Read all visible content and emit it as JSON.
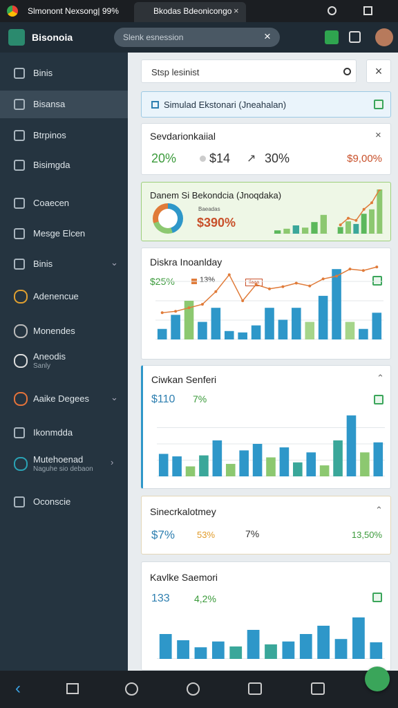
{
  "tabs": [
    "Slmonont Nexsong| 99%",
    "Bkodas Bdeonicongo"
  ],
  "app": {
    "name": "Bisonoia",
    "search": "Slenk esnession"
  },
  "sidebar": [
    {
      "label": "Binis"
    },
    {
      "label": "Bisansa"
    },
    {
      "label": "Btrpinos"
    },
    {
      "label": "Bisimgda"
    },
    {
      "label": "Coaecen"
    },
    {
      "label": "Mesge Elcen"
    },
    {
      "label": "Binis"
    },
    {
      "label": "Adenencue"
    },
    {
      "label": "Monendes"
    },
    {
      "label": "Aneodis",
      "sub": "Sanly"
    },
    {
      "label": "Aaike Degees"
    },
    {
      "label": "Ikonmdda"
    },
    {
      "label": "Mutehoenad",
      "sub": "Naguhe sio debaon"
    },
    {
      "label": "Oconscie"
    }
  ],
  "main": {
    "search": "Stsp lesinist",
    "banner": "Simulad Ekstonari (Jneahalan)",
    "cards": [
      {
        "title": "Sevdarionkaiial",
        "stats": [
          "20%",
          "$14",
          "30%",
          "$9,00%"
        ]
      },
      {
        "title": "Danem Si Bekondcia (Jnoqdaka)",
        "label": "Baeadas",
        "value": "$390%",
        "charts": [
          {
            "type": "bar",
            "values": [
              12,
              18,
              30,
              22,
              42,
              68
            ],
            "colors": [
              "#5cb85c",
              "#8cc870",
              "#3aa79a",
              "#8cc870",
              "#5cb85c",
              "#8cc870"
            ],
            "ylim": [
              0,
              100
            ]
          },
          {
            "type": "bar",
            "values": [
              15,
              28,
              22,
              45,
              55,
              100
            ],
            "colors": [
              "#5cb85c",
              "#8cc870",
              "#3aa79a",
              "#5cb85c",
              "#8cc870",
              "#8cc870"
            ],
            "ylim": [
              0,
              100
            ],
            "line": [
              20,
              35,
              30,
              55,
              70,
              100
            ],
            "line_color": "#e07b39"
          }
        ]
      },
      {
        "title": "Diskra Inoanlday",
        "stats": [
          "$25%",
          "13%"
        ],
        "tag": "Ilaaa",
        "chart": {
          "type": "bar",
          "values": [
            15,
            35,
            55,
            25,
            45,
            12,
            10,
            20,
            45,
            28,
            45,
            25,
            62,
            100,
            25,
            15,
            38
          ],
          "colors": [
            "#2e97c9",
            "#2e97c9",
            "#8cc870",
            "#2e97c9",
            "#2e97c9",
            "#2e97c9",
            "#2e97c9",
            "#2e97c9",
            "#2e97c9",
            "#2e97c9",
            "#2e97c9",
            "#a5d58a",
            "#2e97c9",
            "#2e97c9",
            "#a5d58a",
            "#2e97c9",
            "#2e97c9"
          ],
          "ylim": [
            0,
            110
          ],
          "line": [
            38,
            40,
            45,
            50,
            68,
            92,
            55,
            78,
            72,
            75,
            80,
            76,
            86,
            90,
            100,
            98,
            103
          ],
          "line_color": "#e07b39"
        }
      },
      {
        "title": "Ciwkan Senferi",
        "stats": [
          "$110",
          "7%"
        ],
        "chart": {
          "type": "bar",
          "values": [
            45,
            40,
            20,
            42,
            72,
            25,
            52,
            65,
            38,
            58,
            28,
            48,
            22,
            72,
            122,
            48,
            68
          ],
          "colors": [
            "#2e97c9",
            "#2e97c9",
            "#8cc870",
            "#3aa79a",
            "#2e97c9",
            "#8cc870",
            "#2e97c9",
            "#2e97c9",
            "#8cc870",
            "#2e97c9",
            "#3aa79a",
            "#2e97c9",
            "#8cc870",
            "#3aa79a",
            "#2e97c9",
            "#8cc870",
            "#2e97c9"
          ],
          "ylim": [
            0,
            130
          ]
        }
      },
      {
        "title": "Sinecrkalotmey",
        "stats": [
          "$7%",
          "53%",
          "7%",
          "13,50%"
        ]
      },
      {
        "title": "Kavlke Saemori",
        "stats": [
          "133",
          "4,2%"
        ],
        "chart": {
          "type": "bar",
          "values": [
            60,
            45,
            28,
            42,
            30,
            70,
            35,
            42,
            60,
            80,
            48,
            100,
            40
          ],
          "colors": [
            "#2e97c9",
            "#2e97c9",
            "#2e97c9",
            "#2e97c9",
            "#3aa79a",
            "#2e97c9",
            "#3aa79a",
            "#2e97c9",
            "#2e97c9",
            "#2e97c9",
            "#2e97c9",
            "#2e97c9",
            "#2e97c9"
          ],
          "ylim": [
            0,
            110
          ]
        }
      }
    ]
  }
}
